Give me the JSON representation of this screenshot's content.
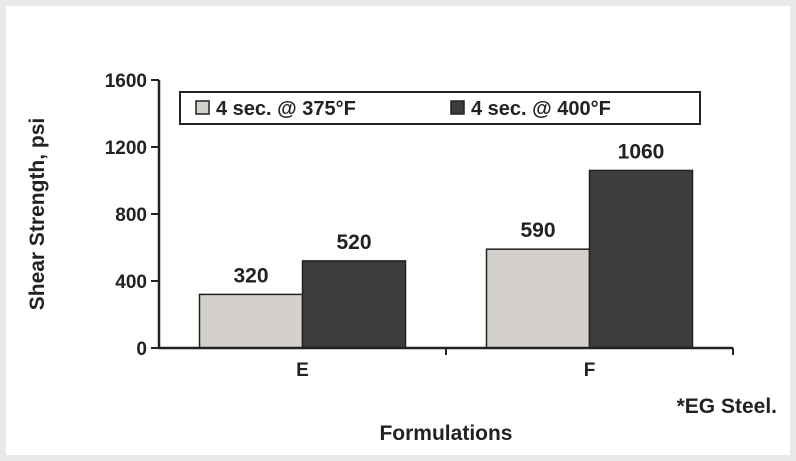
{
  "chart_data": {
    "type": "bar",
    "categories": [
      "E",
      "F"
    ],
    "series": [
      {
        "name": "4 sec. @ 375°F",
        "values": [
          320,
          590
        ],
        "color": "#d4d0cc"
      },
      {
        "name": "4 sec. @ 400°F",
        "values": [
          520,
          1060
        ],
        "color": "#3d3d3b"
      }
    ],
    "data_labels": [
      [
        "320",
        "590"
      ],
      [
        "520",
        "1060"
      ]
    ],
    "yticks": [
      0,
      400,
      800,
      1200,
      1600
    ],
    "ylim": [
      0,
      1600
    ],
    "xlabel": "Formulations",
    "ylabel": "Shear Strength, psi",
    "legend_position": "top",
    "grid": false,
    "footnote": "*EG Steel."
  }
}
